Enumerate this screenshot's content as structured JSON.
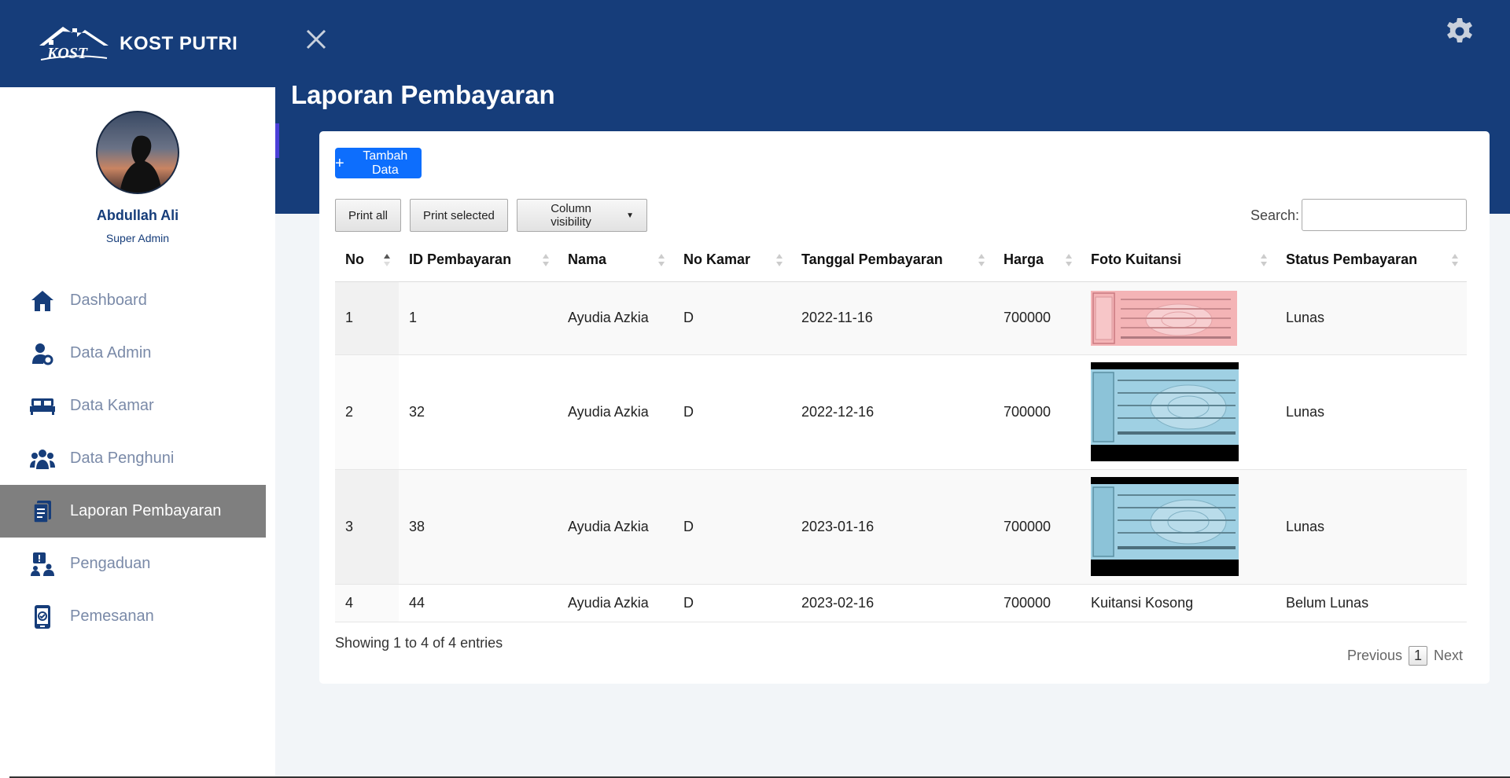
{
  "brand": {
    "logo_text": "KOST",
    "name": "KOST PUTRI"
  },
  "profile": {
    "name": "Abdullah Ali",
    "role": "Super Admin"
  },
  "sidebar": {
    "items": [
      {
        "label": "Dashboard",
        "icon": "home-icon",
        "active": false
      },
      {
        "label": "Data Admin",
        "icon": "user-gear-icon",
        "active": false
      },
      {
        "label": "Data Kamar",
        "icon": "bed-icon",
        "active": false
      },
      {
        "label": "Data Penghuni",
        "icon": "users-icon",
        "active": false
      },
      {
        "label": "Laporan Pembayaran",
        "icon": "document-icon",
        "active": true
      },
      {
        "label": "Pengaduan",
        "icon": "alert-user-icon",
        "active": false
      },
      {
        "label": "Pemesanan",
        "icon": "phone-order-icon",
        "active": false
      }
    ]
  },
  "header": {
    "title": "Laporan Pembayaran"
  },
  "toolbar": {
    "add_label": "Tambah Data",
    "print_all": "Print all",
    "print_selected": "Print selected",
    "column_visibility": "Column visibility",
    "search_label": "Search:",
    "search_value": ""
  },
  "table": {
    "columns": [
      "No",
      "ID Pembayaran",
      "Nama",
      "No Kamar",
      "Tanggal Pembayaran",
      "Harga",
      "Foto Kuitansi",
      "Status Pembayaran"
    ],
    "rows": [
      {
        "no": "1",
        "id": "1",
        "nama": "Ayudia Azkia",
        "kamar": "D",
        "tanggal": "2022-11-16",
        "harga": "700000",
        "foto": "receipt-pink",
        "status": "Lunas"
      },
      {
        "no": "2",
        "id": "32",
        "nama": "Ayudia Azkia",
        "kamar": "D",
        "tanggal": "2022-12-16",
        "harga": "700000",
        "foto": "receipt-blue",
        "status": "Lunas"
      },
      {
        "no": "3",
        "id": "38",
        "nama": "Ayudia Azkia",
        "kamar": "D",
        "tanggal": "2023-01-16",
        "harga": "700000",
        "foto": "receipt-blue",
        "status": "Lunas"
      },
      {
        "no": "4",
        "id": "44",
        "nama": "Ayudia Azkia",
        "kamar": "D",
        "tanggal": "2023-02-16",
        "harga": "700000",
        "foto_text": "Kuitansi Kosong",
        "status": "Belum Lunas"
      }
    ]
  },
  "footer": {
    "info": "Showing 1 to 4 of 4 entries",
    "previous": "Previous",
    "page": "1",
    "next": "Next"
  },
  "colors": {
    "primary": "#163d7a",
    "button": "#0d6efd",
    "active_menu": "#7f7f7f"
  }
}
